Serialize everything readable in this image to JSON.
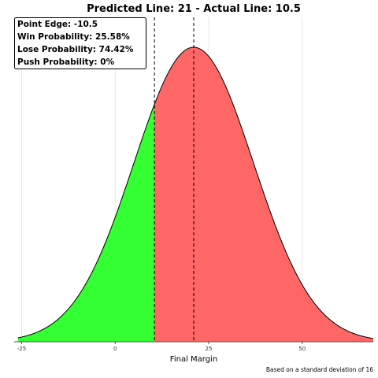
{
  "chart_data": {
    "type": "area",
    "title": "Predicted Line: 21  -  Actual Line: 10.5",
    "xlabel": "Final Margin",
    "ylabel": "",
    "x_ticks": [
      -25,
      0,
      25,
      50
    ],
    "x_tick_labels": [
      "-25",
      "0",
      "25",
      "50"
    ],
    "xlim": [
      -27,
      69
    ],
    "mean": 21,
    "std_dev": 16,
    "split_at": 10.5,
    "vertical_lines": [
      10.5,
      21
    ],
    "grid": true,
    "legend_position": "top-left",
    "stats": [
      {
        "label": "Point Edge:",
        "value": "-10.5"
      },
      {
        "label": "Win Probability:",
        "value": "25.58%"
      },
      {
        "label": "Lose Probability:",
        "value": "74.42%"
      },
      {
        "label": "Push Probability:",
        "value": "0%"
      }
    ],
    "footnote": "Based on a standard deviation of 16",
    "colors": {
      "left_fill": "#33ff33",
      "right_fill": "#ff6666",
      "curve": "#000000",
      "grid": "#e8e8e8"
    }
  }
}
